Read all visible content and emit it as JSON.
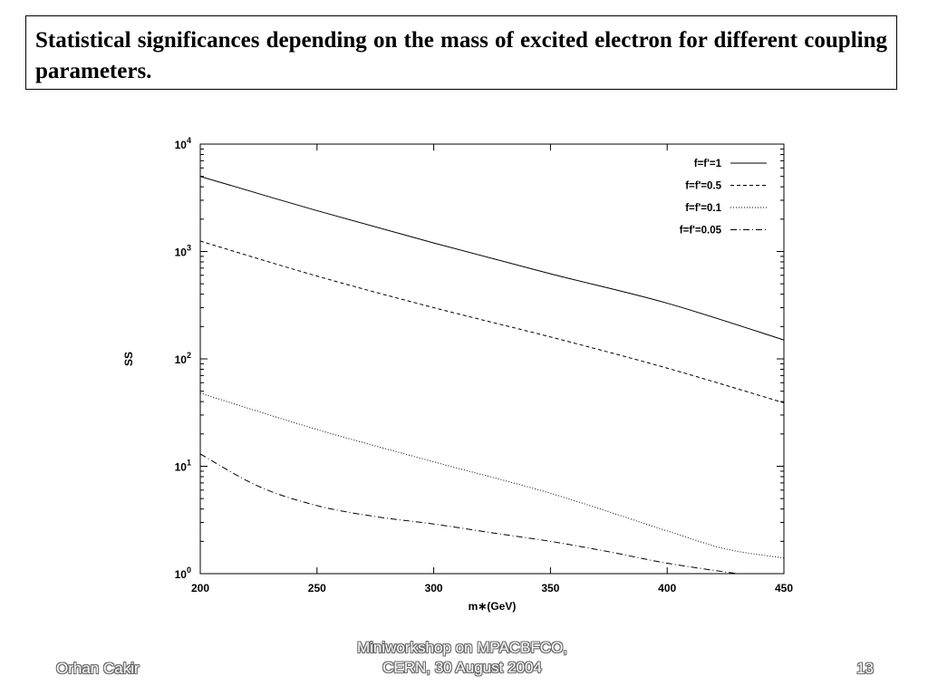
{
  "slide": {
    "title": "Statistical significances depending on the mass of excited electron for different coupling parameters.",
    "footer_left": "Orhan Cakir",
    "footer_center_line1": "Miniworkshop on MPACBFCO,",
    "footer_center_line2": "CERN, 30 August 2004",
    "page_number": "13"
  },
  "chart_data": {
    "type": "line",
    "title": "",
    "xlabel": "m∗(GeV)",
    "ylabel": "SS",
    "xlim": [
      200,
      450
    ],
    "ylim": [
      1,
      10000
    ],
    "yscale": "log",
    "grid": false,
    "legend_position": "top-right",
    "x_ticks": [
      200,
      250,
      300,
      350,
      400,
      450
    ],
    "y_ticks": [
      {
        "value": 1,
        "base": "10",
        "exp": "0"
      },
      {
        "value": 10,
        "base": "10",
        "exp": "1"
      },
      {
        "value": 100,
        "base": "10",
        "exp": "2"
      },
      {
        "value": 1000,
        "base": "10",
        "exp": "3"
      },
      {
        "value": 10000,
        "base": "10",
        "exp": "4"
      }
    ],
    "series": [
      {
        "name": "f=f'=1",
        "dash": "solid",
        "x": [
          200,
          250,
          300,
          350,
          400,
          450
        ],
        "y": [
          5000,
          2400,
          1200,
          620,
          330,
          150
        ]
      },
      {
        "name": "f=f'=0.5",
        "dash": "dashed",
        "x": [
          200,
          250,
          300,
          350,
          400,
          450
        ],
        "y": [
          1250,
          590,
          300,
          160,
          82,
          39
        ]
      },
      {
        "name": "f=f'=0.1",
        "dash": "dotted",
        "x": [
          200,
          250,
          300,
          350,
          400,
          425,
          450
        ],
        "y": [
          48,
          22,
          11,
          5.6,
          2.5,
          1.7,
          1.4
        ]
      },
      {
        "name": "f=f'=0.05",
        "dash": "dashdot",
        "x": [
          200,
          225,
          250,
          275,
          300,
          325,
          350,
          375,
          400,
          430
        ],
        "y": [
          13,
          6.5,
          4.3,
          3.4,
          2.9,
          2.4,
          2.0,
          1.6,
          1.25,
          1.0
        ]
      }
    ]
  }
}
